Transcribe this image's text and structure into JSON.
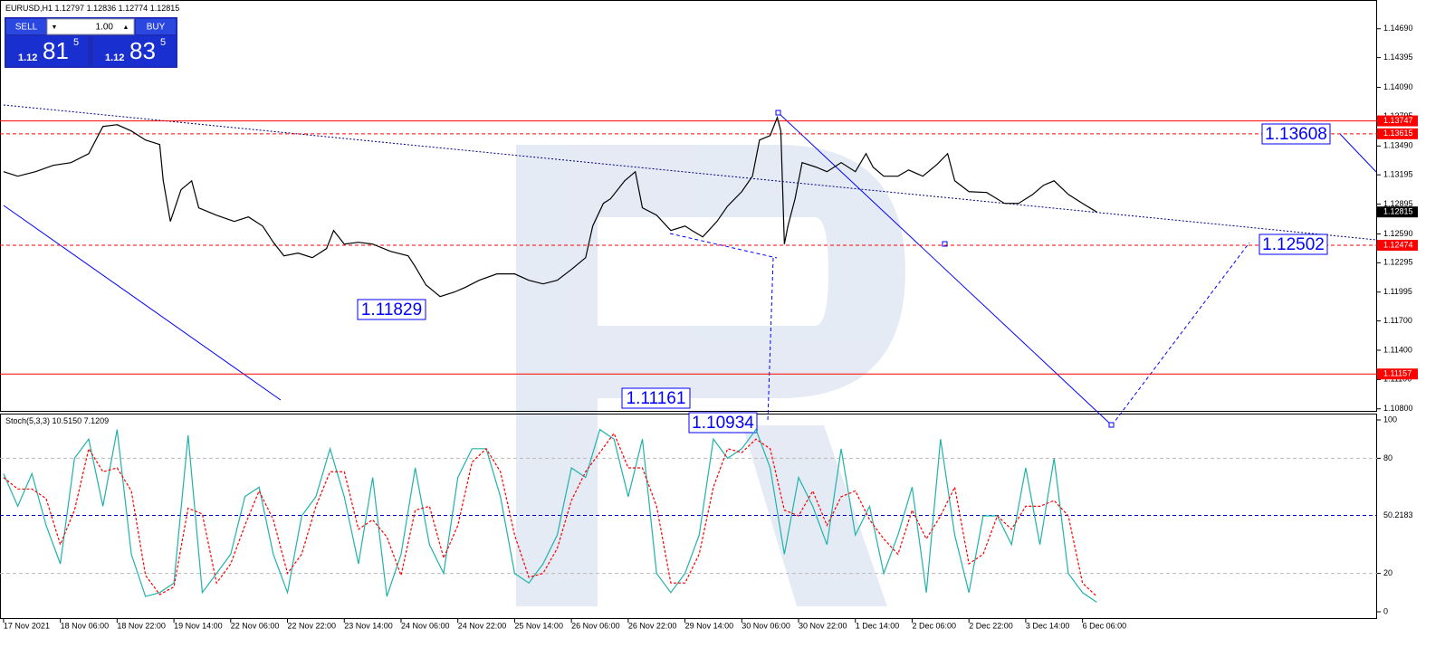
{
  "header": {
    "title": "EURUSD,H1",
    "ohlc": [
      1.12797,
      1.12836,
      1.12774,
      1.12815
    ]
  },
  "trade_panel": {
    "sell_label": "SELL",
    "buy_label": "BUY",
    "volume": "1.00",
    "sell_price": {
      "prefix": "1.12",
      "big": "81",
      "last": "5"
    },
    "buy_price": {
      "prefix": "1.12",
      "big": "83",
      "last": "5"
    }
  },
  "chart_data": [
    {
      "type": "line",
      "color": "#000000",
      "xlim": [
        -1,
        387
      ],
      "ylim": [
        1.1077,
        1.1491
      ],
      "yticks": [
        {
          "value": 1.1469,
          "label": "1.14690"
        },
        {
          "value": 1.14395,
          "label": "1.14395"
        },
        {
          "value": 1.1409,
          "label": "1.14090"
        },
        {
          "value": 1.13795,
          "label": "1.13795"
        },
        {
          "value": 1.1349,
          "label": "1.13490"
        },
        {
          "value": 1.13195,
          "label": "1.13195"
        },
        {
          "value": 1.12895,
          "label": "1.12895"
        },
        {
          "value": 1.1259,
          "label": "1.12590"
        },
        {
          "value": 1.12295,
          "label": "1.12295"
        },
        {
          "value": 1.11995,
          "label": "1.11995"
        },
        {
          "value": 1.117,
          "label": "1.11700"
        },
        {
          "value": 1.114,
          "label": "1.11400"
        },
        {
          "value": 1.111,
          "label": "1.11100"
        },
        {
          "value": 1.108,
          "label": "1.10800"
        }
      ],
      "levels": [
        {
          "value": 1.13747,
          "color": "#ff0000",
          "style": "solid"
        },
        {
          "value": 1.13615,
          "color": "#ff0000",
          "style": "dashed"
        },
        {
          "value": 1.12474,
          "color": "#ff0000",
          "style": "dashed"
        },
        {
          "value": 1.11157,
          "color": "#ff0000",
          "style": "solid"
        }
      ],
      "annotations": [
        1.13608,
        1.12502,
        1.11829,
        1.11161,
        1.10934
      ],
      "x": [
        0,
        4,
        9,
        14,
        19,
        24,
        28,
        32,
        36,
        40,
        44,
        45,
        47,
        50,
        53,
        55,
        60,
        65,
        69,
        73,
        76,
        79,
        83,
        87,
        91,
        93,
        96,
        100,
        104,
        109,
        114,
        116,
        119,
        123,
        127,
        130,
        134,
        139,
        144,
        148,
        152,
        156,
        160,
        164,
        166,
        169,
        171,
        175,
        178,
        180,
        184,
        188,
        192,
        194,
        197,
        201,
        204,
        208,
        211,
        213,
        216,
        218,
        219,
        220,
        221,
        223,
        225,
        229,
        232,
        236,
        240,
        243,
        245,
        248,
        252,
        255,
        259,
        263,
        266,
        268,
        272,
        277,
        282,
        286,
        290,
        293,
        296,
        300,
        304,
        308
      ],
      "values": [
        1.13227,
        1.13181,
        1.13227,
        1.13292,
        1.1332,
        1.13412,
        1.1369,
        1.13708,
        1.13644,
        1.13551,
        1.13505,
        1.13134,
        1.12718,
        1.13042,
        1.13134,
        1.12857,
        1.12782,
        1.12718,
        1.12764,
        1.12671,
        1.12505,
        1.12366,
        1.12394,
        1.12347,
        1.1244,
        1.12625,
        1.12486,
        1.12505,
        1.12486,
        1.12412,
        1.12366,
        1.12255,
        1.12069,
        1.11949,
        1.11995,
        1.12042,
        1.12116,
        1.12181,
        1.12181,
        1.12116,
        1.12079,
        1.12116,
        1.12227,
        1.12347,
        1.12671,
        1.12903,
        1.12949,
        1.13134,
        1.13227,
        1.12857,
        1.12782,
        1.12625,
        1.12671,
        1.12625,
        1.1256,
        1.12718,
        1.12875,
        1.13023,
        1.13181,
        1.13551,
        1.13597,
        1.13783,
        1.13644,
        1.12486,
        1.12671,
        1.12949,
        1.1332,
        1.13273,
        1.13227,
        1.1332,
        1.13227,
        1.13412,
        1.13273,
        1.13181,
        1.13181,
        1.13245,
        1.13181,
        1.13301,
        1.13412,
        1.13134,
        1.13023,
        1.13014,
        1.12903,
        1.12903,
        1.12995,
        1.13088,
        1.13134,
        1.12995,
        1.12903,
        1.12815
      ]
    },
    {
      "type": "line",
      "title": "Stoch(5,3,3)",
      "indicator_values": [
        {
          "value": 10.515,
          "label": "10.5150"
        },
        {
          "value": 7.1209,
          "label": "7.1209"
        }
      ],
      "xlim": [
        -1,
        387
      ],
      "ylim": [
        0,
        100
      ],
      "yticks": [
        0,
        20,
        80,
        100
      ],
      "mid_level": {
        "value": 50.2183,
        "color": "#0000cc"
      },
      "xticks": [
        {
          "value": 0,
          "label": "17 Nov 2021"
        },
        {
          "value": 16,
          "label": "18 Nov 06:00"
        },
        {
          "value": 32,
          "label": "18 Nov 22:00"
        },
        {
          "value": 48,
          "label": "19 Nov 14:00"
        },
        {
          "value": 64,
          "label": "22 Nov 06:00"
        },
        {
          "value": 80,
          "label": "22 Nov 22:00"
        },
        {
          "value": 96,
          "label": "23 Nov 14:00"
        },
        {
          "value": 112,
          "label": "24 Nov 06:00"
        },
        {
          "value": 128,
          "label": "24 Nov 22:00"
        },
        {
          "value": 144,
          "label": "25 Nov 14:00"
        },
        {
          "value": 160,
          "label": "26 Nov 06:00"
        },
        {
          "value": 176,
          "label": "26 Nov 22:00"
        },
        {
          "value": 192,
          "label": "29 Nov 14:00"
        },
        {
          "value": 208,
          "label": "30 Nov 06:00"
        },
        {
          "value": 224,
          "label": "30 Nov 22:00"
        },
        {
          "value": 240,
          "label": "1 Dec 14:00"
        },
        {
          "value": 256,
          "label": "2 Dec 06:00"
        },
        {
          "value": 272,
          "label": "2 Dec 22:00"
        },
        {
          "value": 288,
          "label": "3 Dec 14:00"
        },
        {
          "value": 304,
          "label": "6 Dec 06:00"
        }
      ],
      "x": [
        0,
        4,
        8,
        12,
        16,
        20,
        24,
        28,
        32,
        36,
        40,
        44,
        48,
        52,
        56,
        60,
        64,
        68,
        72,
        76,
        80,
        84,
        88,
        92,
        96,
        100,
        104,
        108,
        112,
        116,
        120,
        124,
        128,
        132,
        136,
        140,
        144,
        148,
        152,
        156,
        160,
        164,
        168,
        172,
        176,
        180,
        184,
        188,
        192,
        196,
        200,
        204,
        208,
        212,
        216,
        220,
        224,
        228,
        232,
        236,
        240,
        244,
        248,
        252,
        256,
        260,
        264,
        268,
        272,
        276,
        280,
        284,
        288,
        292,
        296,
        300,
        304,
        308
      ],
      "series": [
        {
          "color": "#20b2aa",
          "dash": false,
          "values": [
            72,
            55,
            72,
            45,
            25,
            80,
            90,
            55,
            95,
            30,
            8,
            10,
            15,
            92,
            10,
            20,
            30,
            60,
            65,
            30,
            10,
            50,
            60,
            85,
            60,
            25,
            70,
            8,
            30,
            75,
            35,
            20,
            70,
            85,
            85,
            60,
            20,
            15,
            25,
            40,
            75,
            70,
            95,
            90,
            60,
            90,
            20,
            10,
            20,
            40,
            90,
            80,
            85,
            95,
            75,
            30,
            70,
            55,
            35,
            85,
            40,
            55,
            20,
            40,
            65,
            10,
            90,
            40,
            10,
            50,
            50,
            35,
            75,
            35,
            80,
            20,
            10,
            5
          ]
        },
        {
          "color": "#ff0000",
          "dash": true,
          "values": [
            70,
            64,
            64,
            59,
            35,
            53,
            85,
            73,
            75,
            63,
            19,
            9,
            13,
            54,
            51,
            15,
            25,
            45,
            63,
            48,
            20,
            30,
            55,
            73,
            73,
            43,
            48,
            39,
            19,
            53,
            55,
            28,
            45,
            78,
            85,
            73,
            40,
            18,
            20,
            33,
            58,
            73,
            83,
            93,
            75,
            75,
            55,
            15,
            15,
            30,
            65,
            85,
            83,
            90,
            85,
            53,
            50,
            63,
            45,
            60,
            63,
            48,
            38,
            30,
            53,
            38,
            50,
            65,
            25,
            30,
            50,
            43,
            55,
            55,
            58,
            50,
            15,
            8
          ]
        }
      ]
    }
  ]
}
